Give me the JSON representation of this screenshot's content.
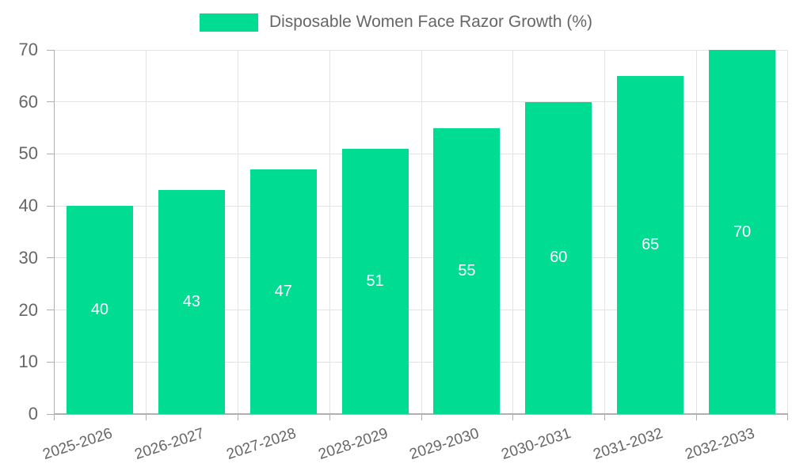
{
  "legend": {
    "entries": [
      "Disposable Women Face Razor Growth (%)"
    ]
  },
  "chart_data": {
    "type": "bar",
    "title": "",
    "legend_entries": [
      "Disposable Women Face Razor Growth (%)"
    ],
    "legend_position": "top-center",
    "categories": [
      "2025-2026",
      "2026-2027",
      "2027-2028",
      "2028-2029",
      "2029-2030",
      "2030-2031",
      "2031-2032",
      "2032-2033"
    ],
    "values": [
      40,
      43,
      47,
      51,
      55,
      60,
      65,
      70
    ],
    "xlabel": "",
    "ylabel": "",
    "ylim": [
      0,
      70
    ],
    "yticks": [
      0,
      10,
      20,
      30,
      40,
      50,
      60,
      70
    ],
    "grid": true,
    "data_labels": "inside-center",
    "x_label_rotation_deg": -18,
    "colors": {
      "bar": "#00DC91",
      "bar_value_label": "#ffffff",
      "axis_text": "#666666",
      "gridline": "#e3e3e3",
      "axis_line": "#b0b0b0",
      "background": "#ffffff"
    }
  }
}
